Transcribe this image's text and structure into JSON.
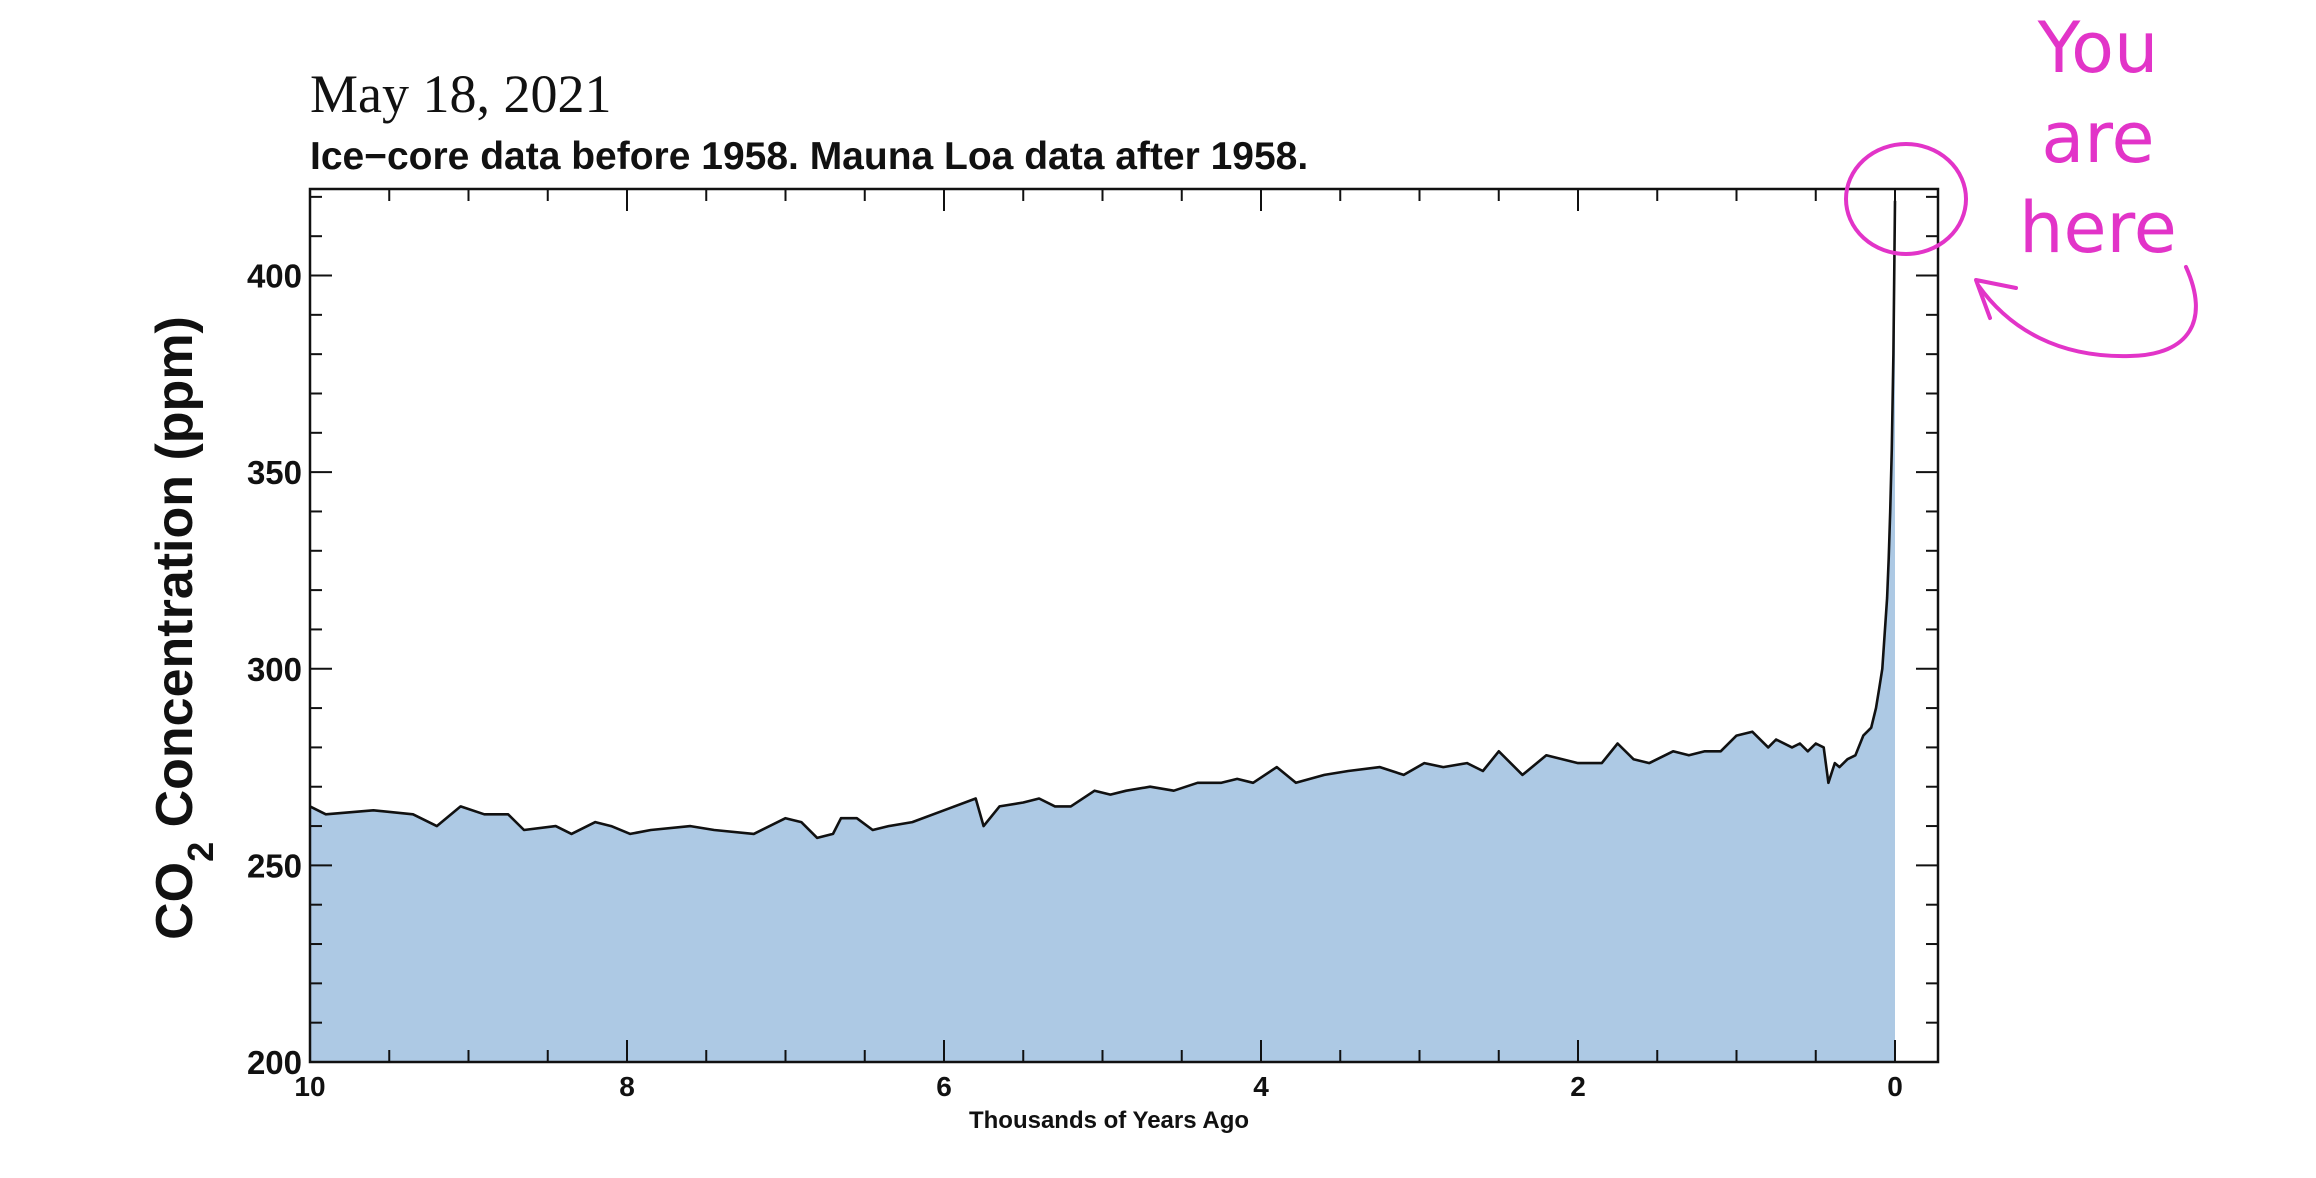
{
  "colors": {
    "fill": "#adc9e4",
    "line": "#111111",
    "annotation": "#e234c8"
  },
  "header": {
    "date": "May 18, 2021",
    "subtitle": "Ice−core data before 1958. Mauna Loa data after 1958."
  },
  "annotation": {
    "lines": [
      "You",
      "are",
      "here"
    ],
    "icon": "circle-and-curved-arrow"
  },
  "chart_data": {
    "type": "area",
    "title": "May 18, 2021",
    "subtitle": "Ice−core data before 1958. Mauna Loa data after 1958.",
    "xlabel": "Thousands of Years Ago",
    "ylabel": "CO2 Concentration (ppm)",
    "ylabel_main": "CO",
    "ylabel_sub": "2",
    "ylabel_rest": " Concentration (ppm)",
    "xlim": [
      10,
      0
    ],
    "ylim": [
      200,
      422
    ],
    "x_ticks": [
      10,
      8,
      6,
      4,
      2,
      0
    ],
    "y_ticks": [
      400,
      350,
      300,
      250,
      200
    ],
    "grid": false,
    "legend": "none",
    "series": [
      {
        "x": [
          10.0,
          9.9,
          9.6,
          9.35,
          9.2,
          9.05,
          8.9,
          8.75,
          8.65,
          8.45,
          8.35,
          8.2,
          8.1,
          7.98,
          7.85,
          7.6,
          7.45,
          7.2,
          7.0,
          6.9,
          6.8,
          6.7,
          6.65,
          6.55,
          6.45,
          6.35,
          6.2,
          6.0,
          5.8,
          5.75,
          5.65,
          5.5,
          5.4,
          5.3,
          5.2,
          5.05,
          4.95,
          4.85,
          4.7,
          4.55,
          4.4,
          4.25,
          4.15,
          4.05,
          3.9,
          3.78,
          3.6,
          3.45,
          3.25,
          3.1,
          2.97,
          2.85,
          2.7,
          2.6,
          2.5,
          2.35,
          2.2,
          2.0,
          1.85,
          1.75,
          1.65,
          1.55,
          1.4,
          1.3,
          1.2,
          1.1,
          1.0,
          0.9,
          0.8,
          0.75,
          0.65,
          0.6,
          0.55,
          0.5,
          0.45,
          0.42,
          0.38,
          0.35,
          0.3,
          0.25,
          0.2,
          0.15,
          0.12,
          0.1,
          0.08,
          0.06,
          0.05,
          0.04,
          0.03,
          0.02,
          0.01,
          0.0
        ],
        "y": [
          265,
          263,
          264,
          263,
          260,
          265,
          263,
          263,
          259,
          260,
          258,
          261,
          260,
          258,
          259,
          260,
          259,
          258,
          262,
          261,
          257,
          258,
          262,
          262,
          259,
          260,
          261,
          264,
          267,
          260,
          265,
          266,
          267,
          265,
          265,
          269,
          268,
          269,
          270,
          269,
          271,
          271,
          272,
          271,
          275,
          271,
          273,
          274,
          275,
          273,
          276,
          275,
          276,
          274,
          279,
          273,
          278,
          276,
          276,
          281,
          277,
          276,
          279,
          278,
          279,
          279,
          283,
          284,
          280,
          282,
          280,
          281,
          279,
          281,
          280,
          271,
          276,
          275,
          277,
          278,
          283,
          285,
          290,
          295,
          300,
          312,
          318,
          328,
          340,
          356,
          380,
          419
        ]
      }
    ]
  }
}
